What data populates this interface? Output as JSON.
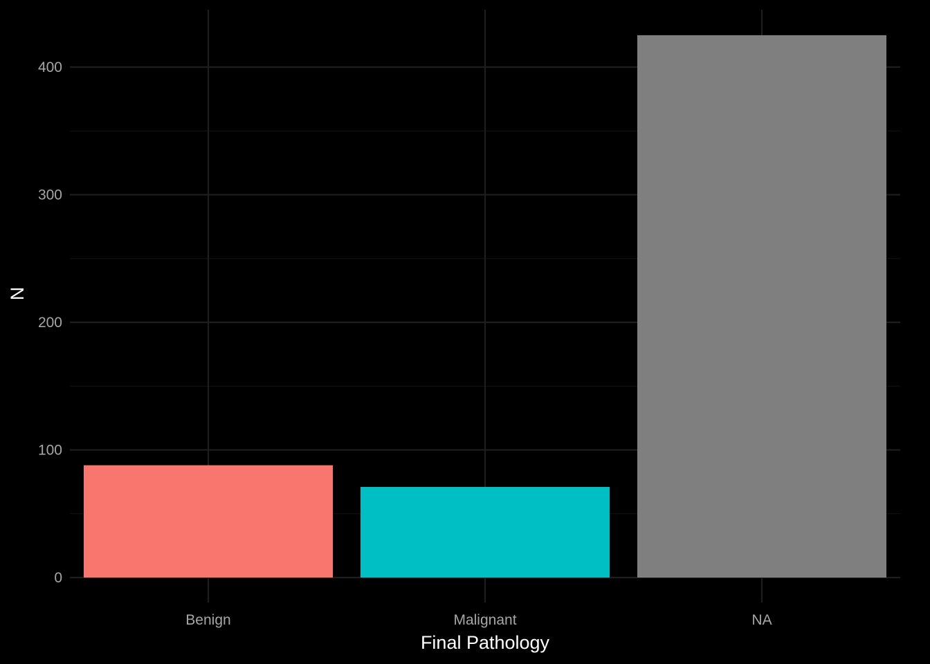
{
  "chart_data": {
    "type": "bar",
    "title": "",
    "xlabel": "Final Pathology",
    "ylabel": "N",
    "categories": [
      "Benign",
      "Malignant",
      "NA"
    ],
    "values": [
      88,
      71,
      425
    ],
    "colors": [
      "#F8766D",
      "#00BFC4",
      "#7F7F7F"
    ],
    "ylim": [
      0,
      445
    ],
    "yticks": [
      0,
      100,
      200,
      300,
      400
    ],
    "y_minor_ticks": [
      50,
      150,
      250,
      350
    ],
    "grid": true,
    "legend": "none",
    "background": "#000000"
  }
}
